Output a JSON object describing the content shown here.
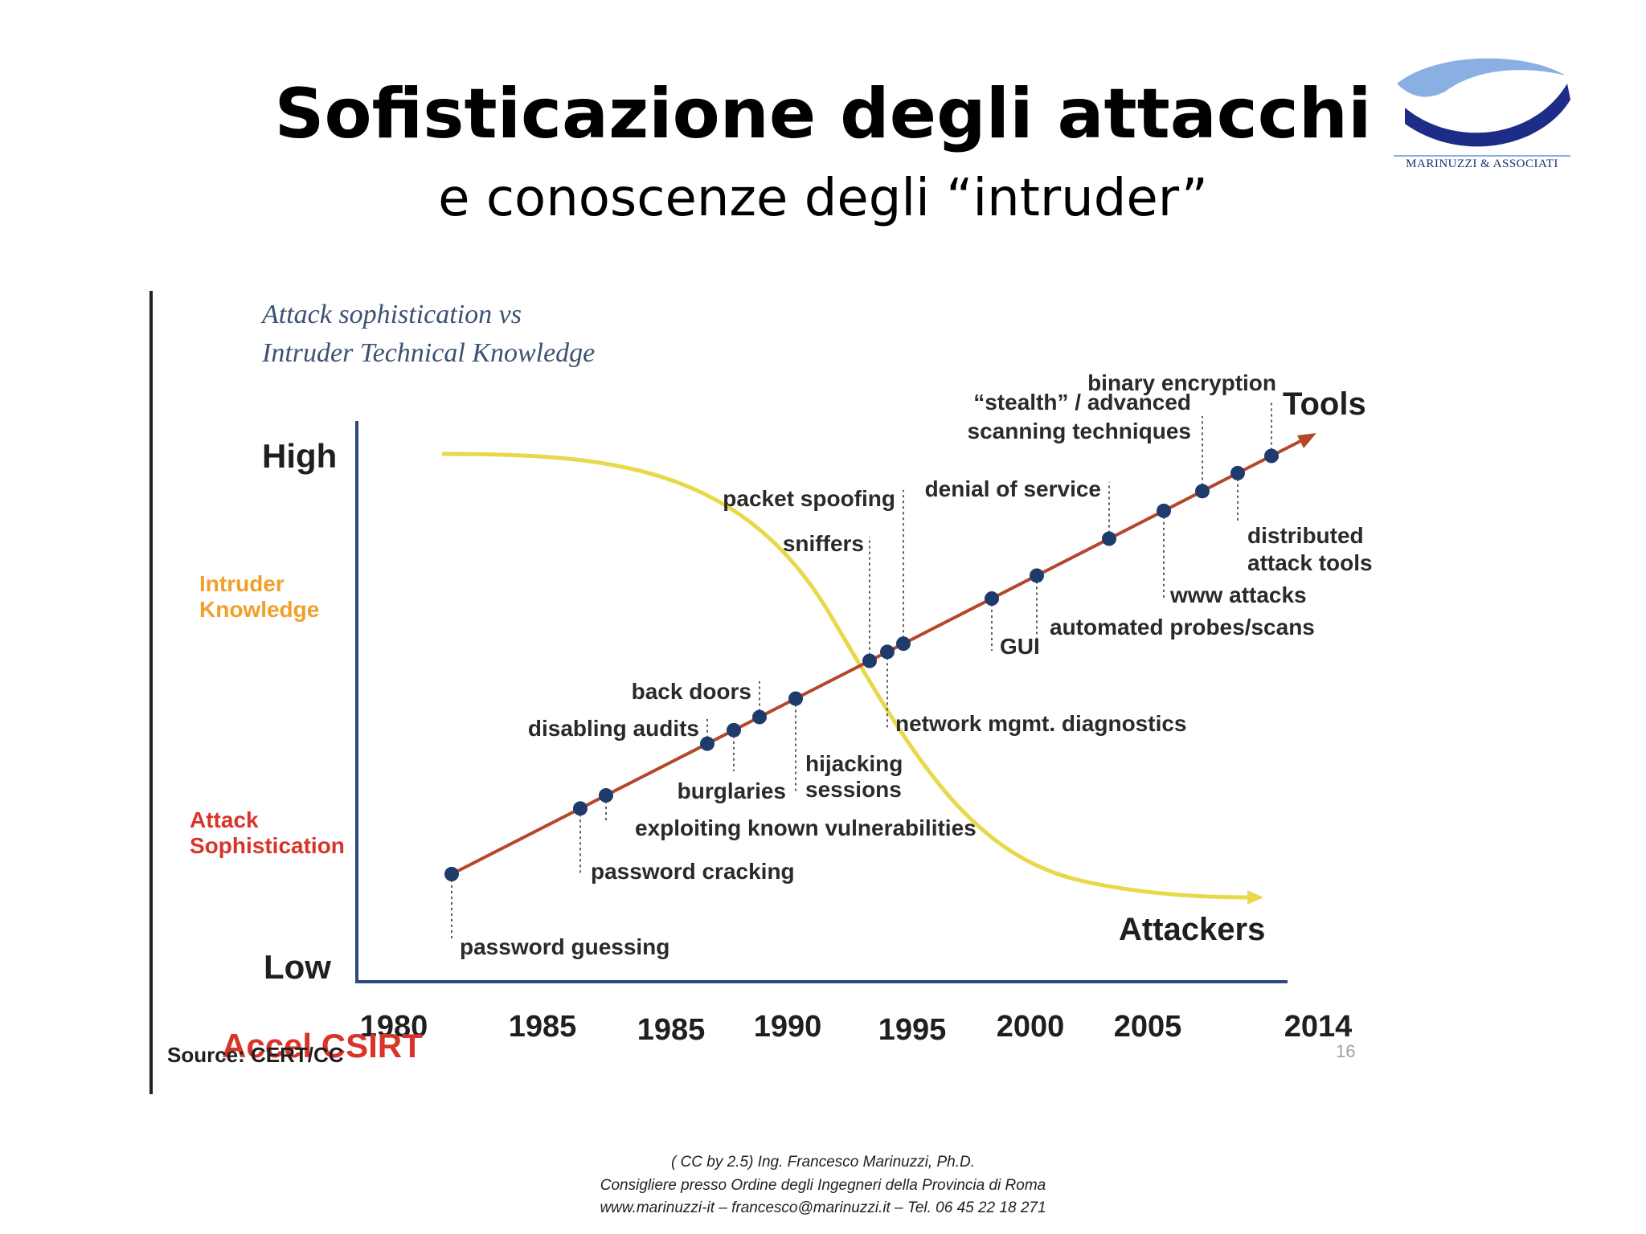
{
  "slide": {
    "title": "Sofisticazione degli attacchi",
    "subtitle": "e conoscenze degli “intruder”",
    "logo_text": "MARINUZZI & ASSOCIATI",
    "footer_lines": [
      "( CC by 2.5) Ing. Francesco Marinuzzi, Ph.D.",
      "Consigliere presso Ordine degli Ingegneri della Provincia di Roma",
      "www.marinuzzi-it – francesco@marinuzzi.it –  Tel. 06 45 22 18 271"
    ],
    "page_number": "16"
  },
  "chart_data": {
    "type": "line",
    "title_lines": [
      "Attack sophistication vs",
      "Intruder Technical Knowledge"
    ],
    "y_high_label": "High",
    "y_low_label": "Low",
    "legend": {
      "intruder_knowledge": [
        "Intruder",
        "Knowledge"
      ],
      "attack_sophistication": [
        "Attack",
        "Sophistication"
      ]
    },
    "x_tick_labels": [
      "1980",
      "1985",
      "1985",
      "1990",
      "1995",
      "2000",
      "2005",
      "2014"
    ],
    "series_labels": {
      "tools": "Tools",
      "attackers": "Attackers"
    },
    "source_text": "Source: CERT/CC",
    "overlay_text": "Accel CSIRT",
    "events": [
      {
        "label": "password guessing",
        "order": 1
      },
      {
        "label": "password cracking",
        "order": 2
      },
      {
        "label": "exploiting known vulnerabilities",
        "order": 3
      },
      {
        "label": "disabling audits",
        "order": 4
      },
      {
        "label": "burglaries",
        "order": 5
      },
      {
        "label": "back doors",
        "order": 6
      },
      {
        "label": "hijacking sessions",
        "order": 7
      },
      {
        "label": "sniffers",
        "order": 8
      },
      {
        "label": "network mgmt. diagnostics",
        "order": 9
      },
      {
        "label": "packet spoofing",
        "order": 10
      },
      {
        "label": "GUI",
        "order": 11
      },
      {
        "label": "automated probes/scans",
        "order": 12
      },
      {
        "label": "denial of service",
        "order": 13
      },
      {
        "label": "www attacks",
        "order": 14
      },
      {
        "label": "“stealth” / advanced scanning techniques",
        "order": 15
      },
      {
        "label": "distributed attack tools",
        "order": 16
      },
      {
        "label": "binary encryption",
        "order": 17
      }
    ],
    "colors": {
      "sophistication_line": "#b5472b",
      "knowledge_curve": "#e8d84a",
      "axis": "#2c4a7c",
      "points": "#1f3b6b",
      "knowledge_label": "#f0a02a",
      "sophistication_label": "#d8342a"
    }
  }
}
